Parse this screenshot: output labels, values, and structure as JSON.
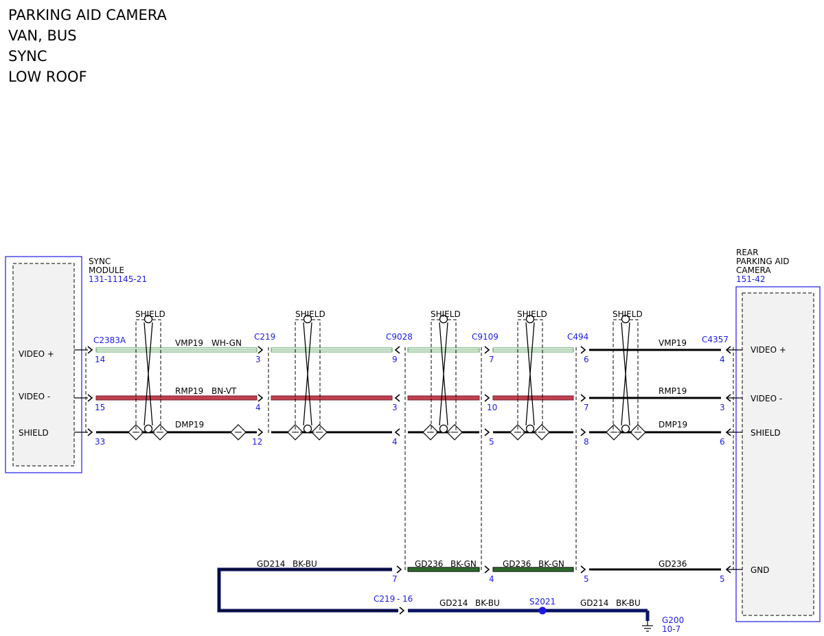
{
  "title_lines": [
    "PARKING AID CAMERA",
    "VAN, BUS",
    "SYNC",
    "LOW ROOF"
  ],
  "modules": {
    "sync": {
      "name_lines": [
        "SYNC",
        "MODULE"
      ],
      "ref": "131-11145-21",
      "pins": [
        "VIDEO +",
        "VIDEO -",
        "SHIELD"
      ]
    },
    "camera": {
      "name_lines": [
        "REAR",
        "PARKING AID",
        "CAMERA"
      ],
      "ref": "151-42",
      "pins": [
        "VIDEO +",
        "VIDEO -",
        "SHIELD",
        "GND"
      ]
    }
  },
  "shield_label": "SHIELD",
  "connectors": [
    "C2383A",
    "C219",
    "C9028",
    "C9109",
    "C494",
    "C4357"
  ],
  "pins": {
    "c2383a": [
      "14",
      "15",
      "33"
    ],
    "c219": [
      "3",
      "4",
      "12"
    ],
    "c9028": [
      "9",
      "3",
      "4",
      "7"
    ],
    "c9109": [
      "7",
      "10",
      "5",
      "4"
    ],
    "c494": [
      "6",
      "7",
      "8",
      "5"
    ],
    "c4357": [
      "4",
      "3",
      "6",
      "5"
    ]
  },
  "wires": {
    "vmp19": "VMP19",
    "wh_gn": "WH-GN",
    "rmp19": "RMP19",
    "bn_vt": "BN-VT",
    "dmp19": "DMP19",
    "gd214": "GD214",
    "bk_bu": "BK-BU",
    "gd236": "GD236",
    "bk_gn": "BK-GN"
  },
  "ground": {
    "c219_label": "C219",
    "c219_pin": "16",
    "splice": "S2021",
    "g200": "G200",
    "g200_ref": "10-7"
  },
  "colors": {
    "pin_blue": "#1a1ae6",
    "red_wire": "#c0404f",
    "green_wire": "#4c9a4c",
    "navy_wire": "#0a1460"
  }
}
